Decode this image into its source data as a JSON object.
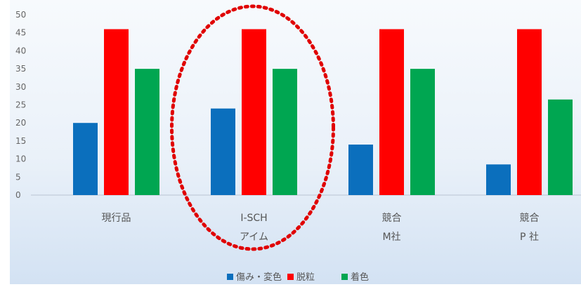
{
  "chart_data": {
    "type": "bar",
    "categories": [
      [
        "現行品"
      ],
      [
        "I-SCH",
        "アイム"
      ],
      [
        "競合",
        "M社"
      ],
      [
        "競合",
        "P 社"
      ]
    ],
    "series": [
      {
        "name": "傷み・変色",
        "color": "#0b6fbd",
        "values": [
          20,
          24,
          14,
          8.5
        ]
      },
      {
        "name": "脱粒",
        "color": "#ff0000",
        "values": [
          46,
          46,
          46,
          46
        ]
      },
      {
        "name": "着色",
        "color": "#00a651",
        "values": [
          35,
          35,
          35,
          26.5
        ]
      }
    ],
    "ylim": [
      0,
      50
    ],
    "yticks": [
      0,
      5,
      10,
      15,
      20,
      25,
      30,
      35,
      40,
      45,
      50
    ],
    "grid": false,
    "legend_position": "bottom",
    "highlight": {
      "category_index": 1,
      "style": "red dotted ellipse"
    }
  }
}
